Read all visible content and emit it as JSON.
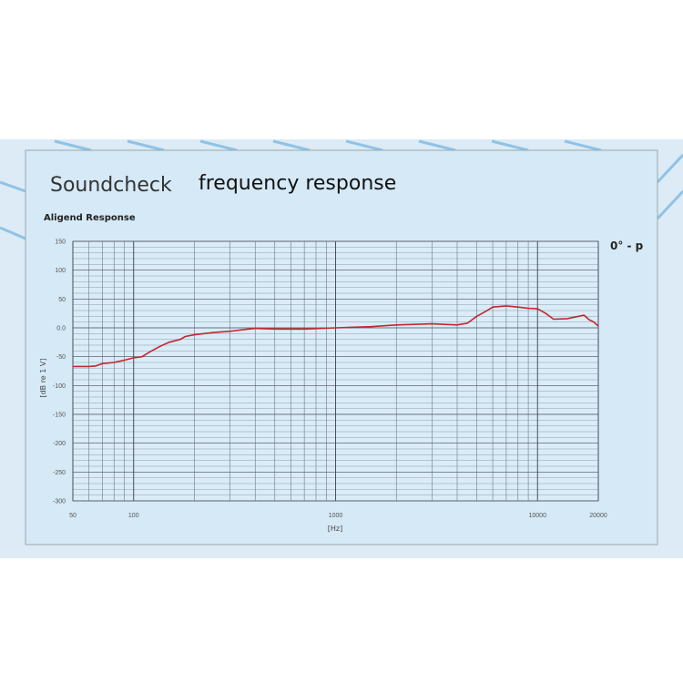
{
  "chart_data": {
    "type": "line",
    "title": "Soundcheck",
    "subtitle": "frequency response",
    "chart_label": "Aligend Response",
    "x_label": "[Hz]",
    "y_label": "[dB re 1 V]",
    "log_x": true,
    "grid": true,
    "x": [
      50,
      60,
      65,
      70,
      80,
      90,
      100,
      110,
      120,
      135,
      150,
      170,
      180,
      200,
      250,
      300,
      350,
      400,
      500,
      700,
      1000,
      1500,
      2000,
      3000,
      4000,
      4500,
      5000,
      5500,
      6000,
      7000,
      8000,
      9000,
      10000,
      11000,
      12000,
      14000,
      16000,
      17000,
      18000,
      19000,
      20000
    ],
    "series": [
      {
        "name": "0° - p",
        "color": "#c0282d",
        "values": [
          -67,
          -67,
          -66,
          -62,
          -60,
          -56,
          -52,
          -50,
          -42,
          -32,
          -25,
          -20,
          -15,
          -12,
          -8,
          -6,
          -3,
          -1,
          -2,
          -2,
          0,
          2,
          5,
          7,
          5,
          8,
          20,
          28,
          36,
          38,
          36,
          34,
          33,
          25,
          15,
          16,
          20,
          22,
          14,
          10,
          3
        ]
      }
    ],
    "xlim": [
      50,
      20000
    ],
    "xticks": [
      50,
      100,
      1000,
      10000,
      20000
    ],
    "ylim": [
      -300,
      150
    ],
    "yticks": [
      -300,
      -250,
      -200,
      -150,
      -100,
      -50,
      {
        "value": 0,
        "label": "0.0"
      },
      50,
      100,
      150
    ]
  }
}
